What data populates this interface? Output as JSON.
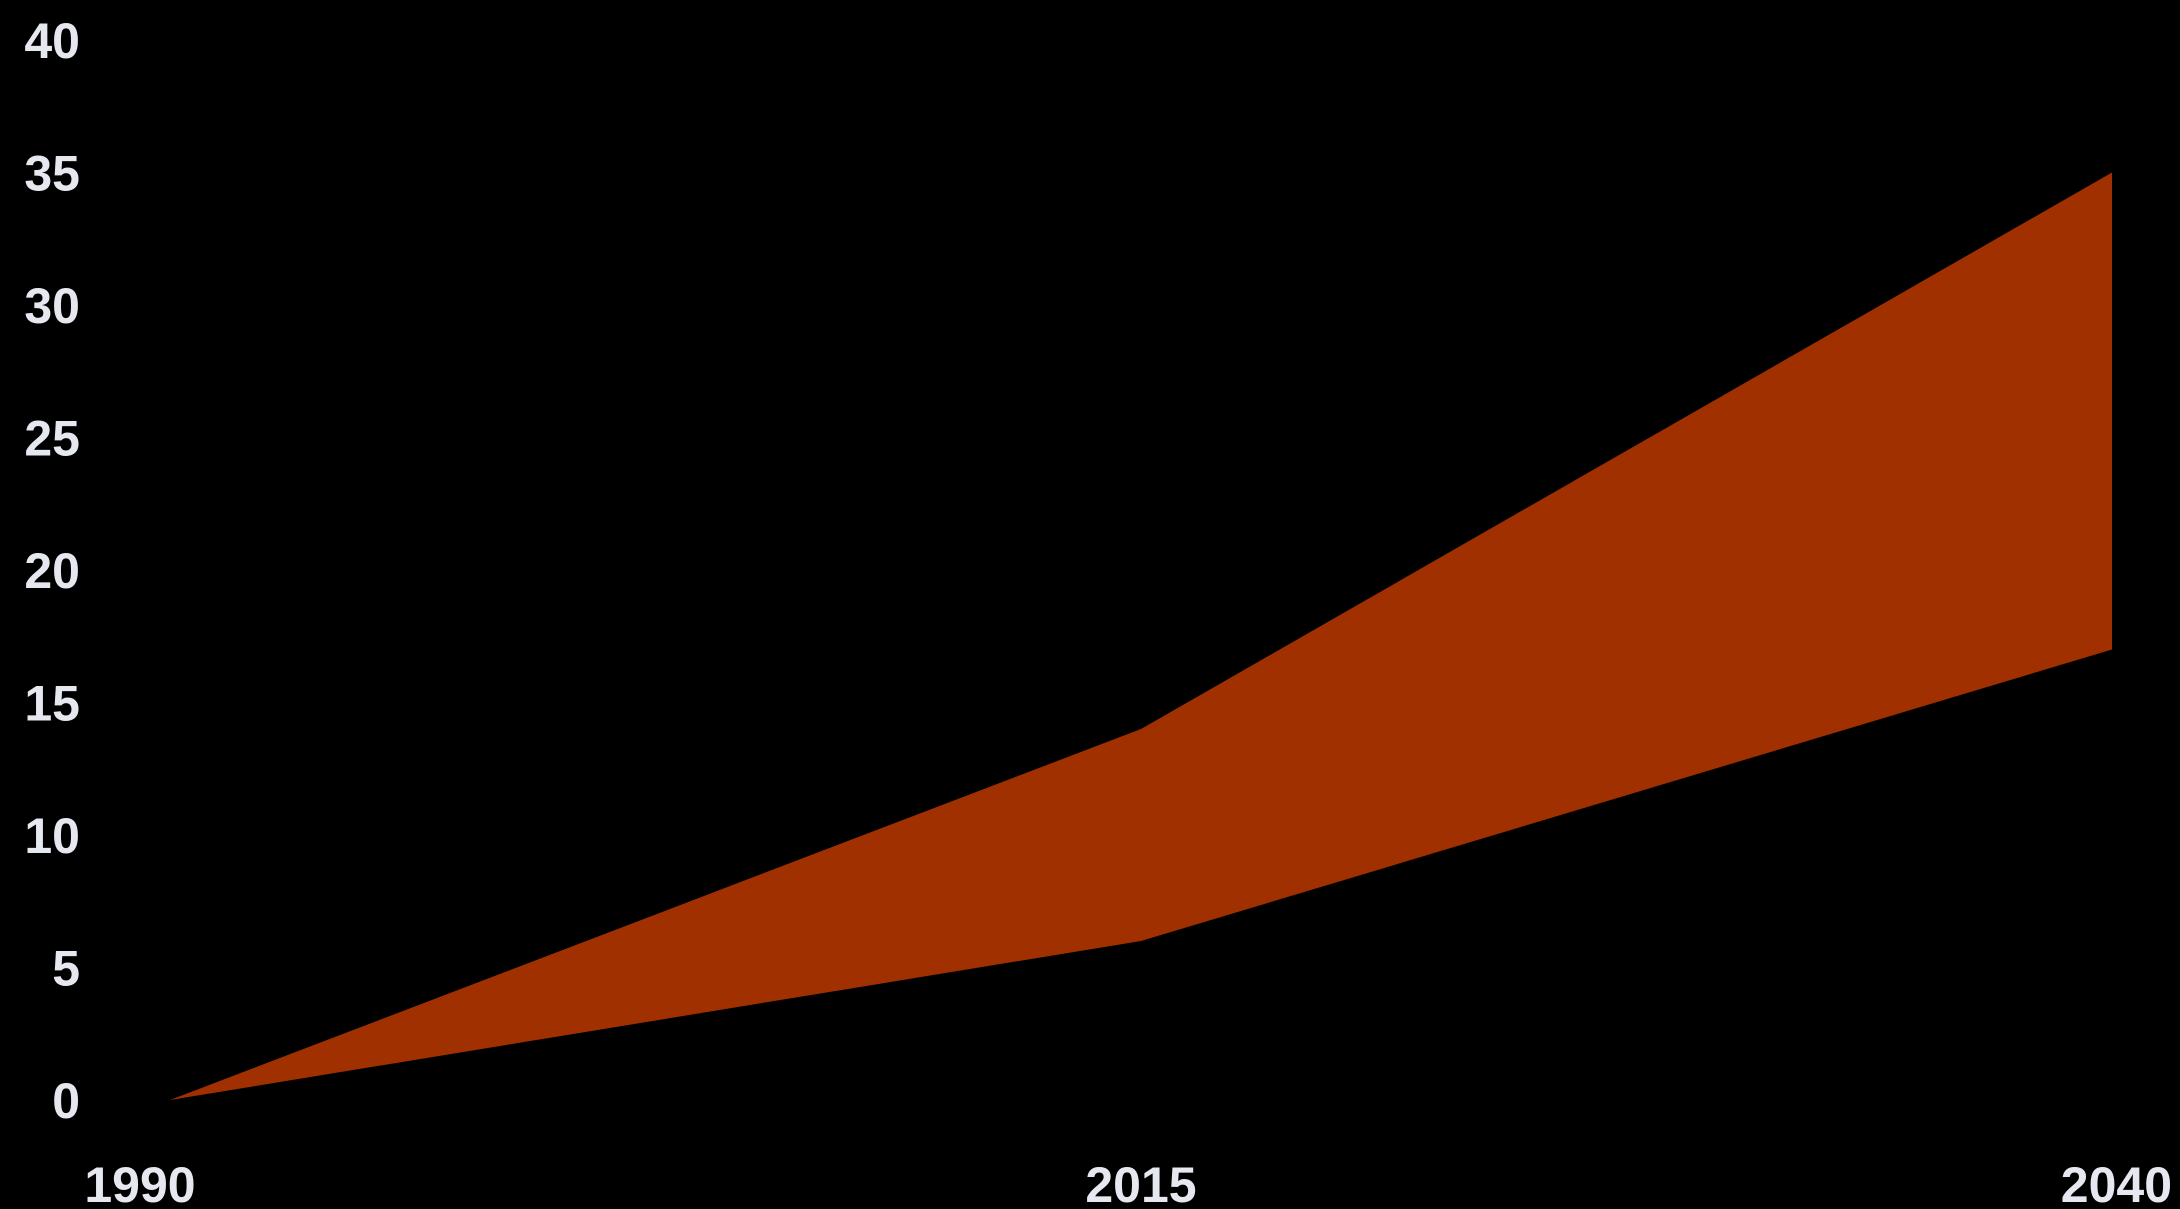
{
  "chart_data": {
    "type": "area",
    "title": "",
    "xlabel": "",
    "ylabel": "",
    "x": [
      1990,
      2015,
      2040
    ],
    "series": [
      {
        "role": "lower",
        "values": [
          0,
          6,
          17
        ]
      },
      {
        "role": "upper",
        "values": [
          0,
          14,
          35
        ]
      }
    ],
    "xlim": [
      1990,
      2040
    ],
    "ylim": [
      0,
      40
    ],
    "yticks": [
      0,
      5,
      10,
      15,
      20,
      25,
      30,
      35,
      40
    ],
    "xticks": [
      1990,
      2015,
      2040
    ],
    "ytick_labels": [
      "0",
      "5",
      "10",
      "15",
      "20",
      "25",
      "30",
      "35",
      "40"
    ],
    "xtick_labels": [
      "1990",
      "2015",
      "2040"
    ],
    "grid": false,
    "legend": "none",
    "background_color": "#000000",
    "fill_color": "#a03000",
    "text_color": "#e6e8f0"
  }
}
